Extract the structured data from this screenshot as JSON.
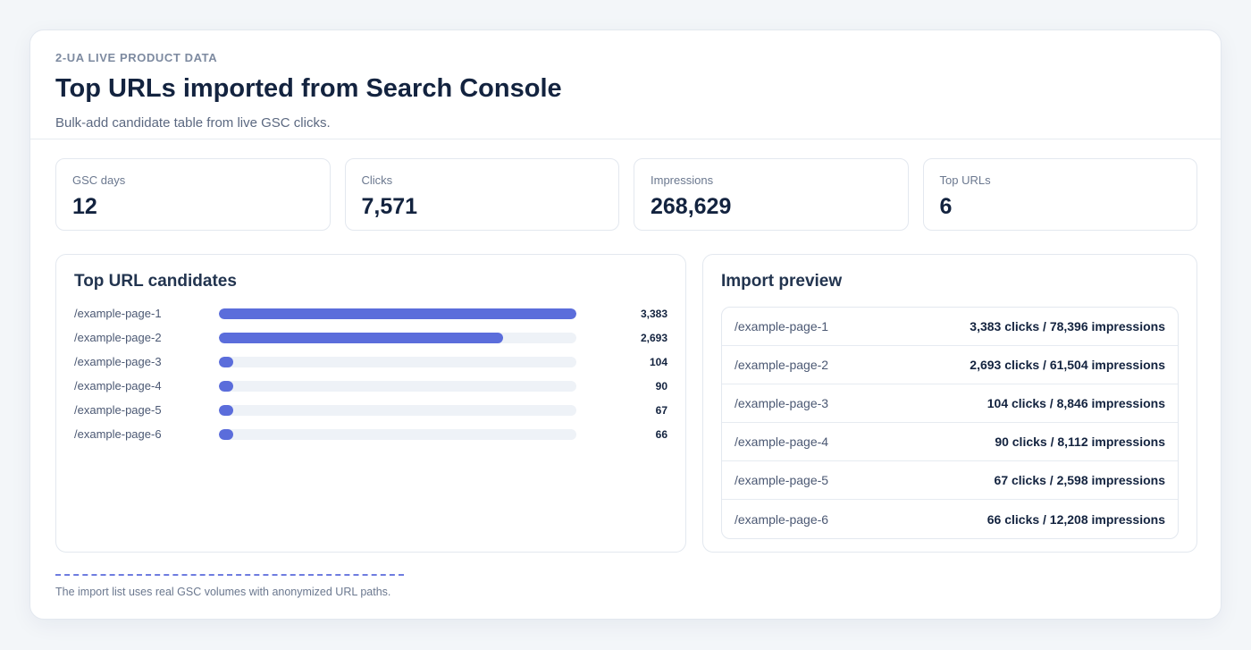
{
  "header": {
    "eyebrow": "2-UA LIVE PRODUCT DATA",
    "title": "Top URLs imported from Search Console",
    "subtitle": "Bulk-add candidate table from live GSC clicks."
  },
  "stats": [
    {
      "label": "GSC days",
      "value": "12"
    },
    {
      "label": "Clicks",
      "value": "7,571"
    },
    {
      "label": "Impressions",
      "value": "268,629"
    },
    {
      "label": "Top URLs",
      "value": "6"
    }
  ],
  "candidates": {
    "title": "Top URL candidates",
    "max": 3383,
    "items": [
      {
        "url": "/example-page-1",
        "clicks": 3383,
        "clicks_label": "3,383"
      },
      {
        "url": "/example-page-2",
        "clicks": 2693,
        "clicks_label": "2,693"
      },
      {
        "url": "/example-page-3",
        "clicks": 104,
        "clicks_label": "104"
      },
      {
        "url": "/example-page-4",
        "clicks": 90,
        "clicks_label": "90"
      },
      {
        "url": "/example-page-5",
        "clicks": 67,
        "clicks_label": "67"
      },
      {
        "url": "/example-page-6",
        "clicks": 66,
        "clicks_label": "66"
      }
    ]
  },
  "preview": {
    "title": "Import preview",
    "rows": [
      {
        "url": "/example-page-1",
        "metric": "3,383 clicks / 78,396 impressions"
      },
      {
        "url": "/example-page-2",
        "metric": "2,693 clicks / 61,504 impressions"
      },
      {
        "url": "/example-page-3",
        "metric": "104 clicks / 8,846 impressions"
      },
      {
        "url": "/example-page-4",
        "metric": "90 clicks / 8,112 impressions"
      },
      {
        "url": "/example-page-5",
        "metric": "67 clicks / 2,598 impressions"
      },
      {
        "url": "/example-page-6",
        "metric": "66 clicks / 12,208 impressions"
      }
    ]
  },
  "footer": {
    "note": "The import list uses real GSC volumes with anonymized URL paths."
  },
  "colors": {
    "accent": "#5b6ddb",
    "track": "#eef2f7"
  }
}
